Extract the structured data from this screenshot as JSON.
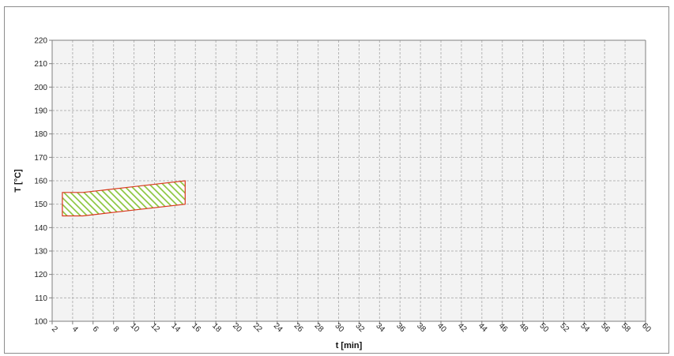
{
  "chart_data": {
    "type": "area",
    "title": "",
    "xlabel": "t [min]",
    "ylabel": "T [°C]",
    "xlim": [
      2,
      60
    ],
    "ylim": [
      100,
      220
    ],
    "x_ticks": [
      2,
      4,
      6,
      8,
      10,
      12,
      14,
      16,
      18,
      20,
      22,
      24,
      26,
      28,
      30,
      32,
      34,
      36,
      38,
      40,
      42,
      44,
      46,
      48,
      50,
      52,
      54,
      56,
      58,
      60
    ],
    "y_ticks": [
      100,
      110,
      120,
      130,
      140,
      150,
      160,
      170,
      180,
      190,
      200,
      210,
      220
    ],
    "grid": true,
    "series": [
      {
        "upper": [
          [
            3,
            155
          ],
          [
            5,
            155
          ],
          [
            7,
            156
          ],
          [
            10,
            157.5
          ],
          [
            15,
            160
          ]
        ],
        "lower": [
          [
            3,
            145
          ],
          [
            5,
            145
          ],
          [
            7,
            146
          ],
          [
            10,
            147.5
          ],
          [
            15,
            150
          ]
        ],
        "fill_pattern": "diagonal-hatch",
        "fill_color": "#8cc63f",
        "edge_color": "#d9381e"
      }
    ],
    "colors": {
      "plot_bg": "#f3f3f3",
      "grid": "#b5b5b5",
      "axis": "#7f7f7f"
    }
  }
}
